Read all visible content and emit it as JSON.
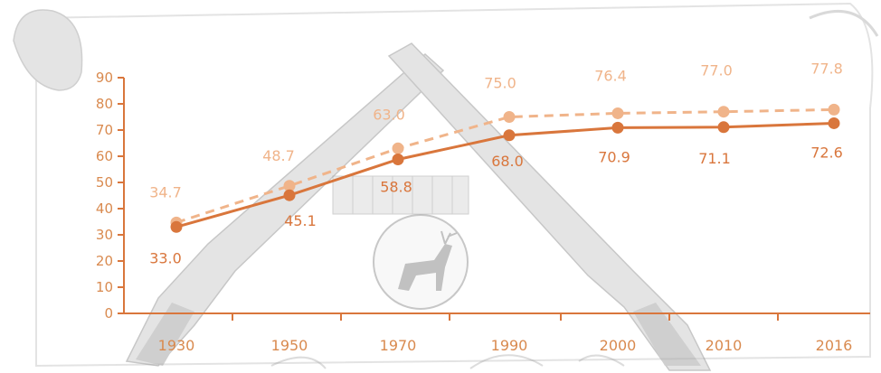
{
  "chart_data": {
    "type": "line",
    "title": "",
    "xlabel": "",
    "ylabel": "",
    "categories": [
      "1930",
      "1950",
      "1970",
      "1990",
      "2000",
      "2010",
      "2016"
    ],
    "ylim": [
      0,
      90
    ],
    "yticks": [
      0,
      10,
      20,
      30,
      40,
      50,
      60,
      70,
      80,
      90
    ],
    "grid": false,
    "legend": "none",
    "series": [
      {
        "values": [
          34.7,
          48.7,
          63.0,
          75.0,
          76.4,
          77.0,
          77.8
        ],
        "style": "dashed",
        "color": "#f0b48a"
      },
      {
        "values": [
          33.0,
          45.1,
          58.8,
          68.0,
          70.9,
          71.1,
          72.6
        ],
        "style": "solid",
        "color": "#d9763c"
      }
    ],
    "background_icons": [
      "crossed-rifles-icon",
      "cartridges-icon",
      "deer-emblem-icon",
      "paper-scroll-icon"
    ]
  }
}
